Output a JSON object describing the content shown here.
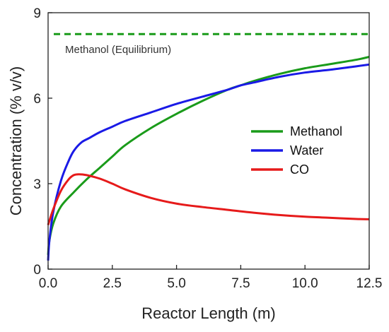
{
  "chart_data": {
    "type": "line",
    "xlabel": "Reactor Length (m)",
    "ylabel": "Concentration (% v/v)",
    "xlim": [
      0,
      12.5
    ],
    "ylim": [
      0,
      9
    ],
    "x_ticks": [
      "0.0",
      "2.5",
      "5.0",
      "7.5",
      "10.0",
      "12.5"
    ],
    "y_ticks": [
      "0",
      "3",
      "6",
      "9"
    ],
    "grid": false,
    "legend_position": "center-right",
    "series": [
      {
        "name": "Methanol",
        "color": "#1a9b1a",
        "x": [
          0,
          0.05,
          0.2,
          0.5,
          1.0,
          1.5,
          2.0,
          2.5,
          3.0,
          4.0,
          5.0,
          6.0,
          7.0,
          7.5,
          8.0,
          9.0,
          10.0,
          11.0,
          12.0,
          12.5
        ],
        "y": [
          0.5,
          1.0,
          1.6,
          2.2,
          2.7,
          3.15,
          3.55,
          3.95,
          4.35,
          4.95,
          5.45,
          5.9,
          6.3,
          6.45,
          6.6,
          6.85,
          7.05,
          7.2,
          7.35,
          7.45
        ]
      },
      {
        "name": "Water",
        "color": "#1a1ae6",
        "x": [
          0,
          0.05,
          0.2,
          0.5,
          0.8,
          1.0,
          1.3,
          1.6,
          2.0,
          2.5,
          3.0,
          4.0,
          5.0,
          6.0,
          7.0,
          7.5,
          8.0,
          9.0,
          10.0,
          11.0,
          12.0,
          12.5
        ],
        "y": [
          0.3,
          1.0,
          2.0,
          3.1,
          3.8,
          4.15,
          4.45,
          4.6,
          4.8,
          5.0,
          5.2,
          5.5,
          5.8,
          6.05,
          6.3,
          6.45,
          6.55,
          6.75,
          6.9,
          7.0,
          7.12,
          7.18
        ]
      },
      {
        "name": "CO",
        "color": "#e61a1a",
        "x": [
          0,
          0.2,
          0.5,
          0.8,
          1.0,
          1.2,
          1.5,
          2.0,
          2.5,
          3.0,
          4.0,
          5.0,
          6.0,
          7.0,
          8.0,
          9.0,
          10.0,
          11.0,
          12.0,
          12.5
        ],
        "y": [
          1.55,
          2.1,
          2.75,
          3.15,
          3.3,
          3.33,
          3.3,
          3.18,
          3.0,
          2.8,
          2.5,
          2.3,
          2.18,
          2.08,
          1.98,
          1.9,
          1.84,
          1.8,
          1.76,
          1.75
        ]
      }
    ],
    "reference_lines": [
      {
        "label": "Methanol (Equilibrium)",
        "y": 8.25,
        "color": "#1a9b1a",
        "style": "dashed"
      }
    ]
  }
}
